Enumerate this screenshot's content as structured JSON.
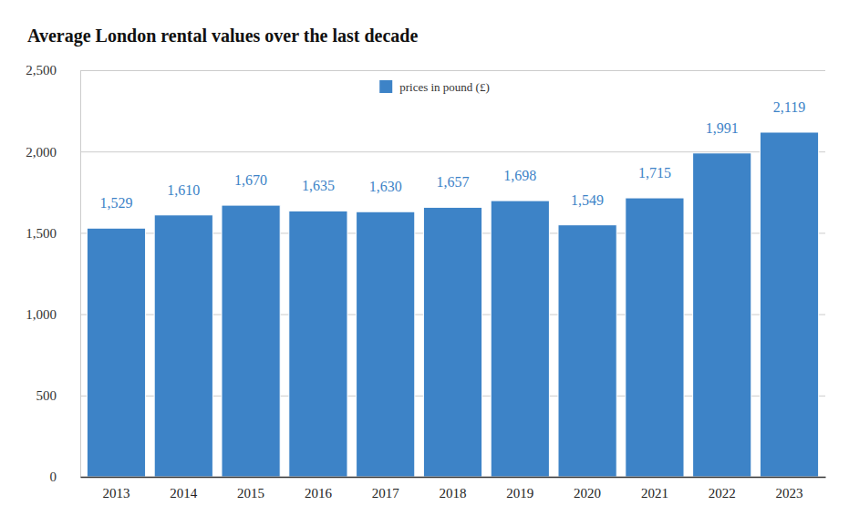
{
  "chart_data": {
    "type": "bar",
    "title": "Average London rental values over the last decade",
    "categories": [
      "2013",
      "2014",
      "2015",
      "2016",
      "2017",
      "2018",
      "2019",
      "2020",
      "2021",
      "2022",
      "2023"
    ],
    "series": [
      {
        "name": "prices in pound (£)",
        "color": "#3d83c7",
        "values": [
          1529,
          1610,
          1670,
          1635,
          1630,
          1657,
          1698,
          1549,
          1715,
          1991,
          2119
        ],
        "value_labels": [
          "1,529",
          "1,610",
          "1,670",
          "1,635",
          "1,630",
          "1,657",
          "1,698",
          "1,549",
          "1,715",
          "1,991",
          "2,119"
        ]
      }
    ],
    "ylim": [
      0,
      2500
    ],
    "yticks": [
      0,
      500,
      {
        "value": 1000,
        "label": "1,000"
      },
      {
        "value": 1500,
        "label": "1,500"
      },
      {
        "value": 2000,
        "label": "2,000"
      },
      {
        "value": 2500,
        "label": "2,500"
      }
    ],
    "grid": true,
    "legend": "top",
    "data_labels": true
  }
}
